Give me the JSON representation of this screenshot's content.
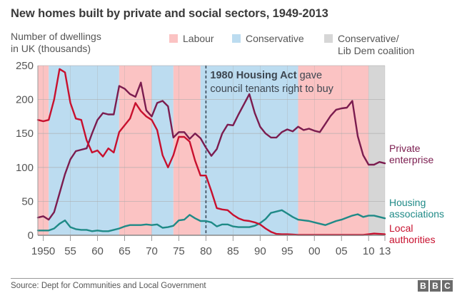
{
  "chart_data": {
    "type": "line",
    "title": "New homes built by private and social sectors, 1949-2013",
    "ylabel": "Number of dwellings in UK (thousands)",
    "ylabel_lines": [
      "Number of dwellings",
      "in UK (thousands)"
    ],
    "xlabel": "",
    "ylim": [
      0,
      250
    ],
    "xlim": [
      1949,
      2013
    ],
    "yticks": [
      0,
      50,
      100,
      150,
      200,
      250
    ],
    "xticks": [
      {
        "year": 1950,
        "label": "1950"
      },
      {
        "year": 1955,
        "label": "55"
      },
      {
        "year": 1960,
        "label": "60"
      },
      {
        "year": 1965,
        "label": "65"
      },
      {
        "year": 1970,
        "label": "70"
      },
      {
        "year": 1975,
        "label": "75"
      },
      {
        "year": 1980,
        "label": "80"
      },
      {
        "year": 1985,
        "label": "85"
      },
      {
        "year": 1990,
        "label": "90"
      },
      {
        "year": 1995,
        "label": "95"
      },
      {
        "year": 2000,
        "label": "00"
      },
      {
        "year": 2005,
        "label": "05"
      },
      {
        "year": 2010,
        "label": "10"
      },
      {
        "year": 2013,
        "label": "13"
      }
    ],
    "grid": true,
    "legend": [
      {
        "label": "Labour",
        "color": "#fbc3c3"
      },
      {
        "label": "Conservative",
        "color": "#bcdcf0"
      },
      {
        "label": "Conservative/ Lib Dem coalition",
        "label_lines": [
          "Conservative/",
          "Lib Dem coalition"
        ],
        "color": "#d6d6d6"
      }
    ],
    "legend_position": "top",
    "government_periods": [
      {
        "party": "Labour",
        "start": 1949,
        "end": 1951
      },
      {
        "party": "Conservative",
        "start": 1951,
        "end": 1964
      },
      {
        "party": "Labour",
        "start": 1964,
        "end": 1970
      },
      {
        "party": "Conservative",
        "start": 1970,
        "end": 1974
      },
      {
        "party": "Labour",
        "start": 1974,
        "end": 1979
      },
      {
        "party": "Conservative",
        "start": 1979,
        "end": 1997
      },
      {
        "party": "Labour",
        "start": 1997,
        "end": 2010
      },
      {
        "party": "Coalition",
        "start": 2010,
        "end": 2013
      }
    ],
    "party_colors": {
      "Labour": "#fbc3c3",
      "Conservative": "#bcdcf0",
      "Coalition": "#d6d6d6"
    },
    "annotation": {
      "year": 1980,
      "bold_text": "1980 Housing Act",
      "text_line1_rest": " gave",
      "text_line2": "council tenants right to buy"
    },
    "x": [
      1949,
      1950,
      1951,
      1952,
      1953,
      1954,
      1955,
      1956,
      1957,
      1958,
      1959,
      1960,
      1961,
      1962,
      1963,
      1964,
      1965,
      1966,
      1967,
      1968,
      1969,
      1970,
      1971,
      1972,
      1973,
      1974,
      1975,
      1976,
      1977,
      1978,
      1979,
      1980,
      1981,
      1982,
      1983,
      1984,
      1985,
      1986,
      1987,
      1988,
      1989,
      1990,
      1991,
      1992,
      1993,
      1994,
      1995,
      1996,
      1997,
      1998,
      1999,
      2000,
      2001,
      2002,
      2003,
      2004,
      2005,
      2006,
      2007,
      2008,
      2009,
      2010,
      2011,
      2012,
      2013
    ],
    "series": [
      {
        "name": "Private enterprise",
        "label_lines": [
          "Private",
          "enterprise"
        ],
        "color": "#7b1c4f",
        "values": [
          26,
          28,
          23,
          34,
          62,
          90,
          112,
          124,
          126,
          128,
          150,
          170,
          180,
          178,
          178,
          220,
          216,
          208,
          204,
          225,
          184,
          175,
          195,
          198,
          190,
          144,
          152,
          152,
          142,
          150,
          143,
          129,
          117,
          127,
          150,
          163,
          162,
          178,
          193,
          208,
          180,
          160,
          150,
          144,
          144,
          152,
          156,
          153,
          160,
          155,
          157,
          154,
          152,
          164,
          176,
          185,
          187,
          188,
          198,
          146,
          118,
          104,
          104,
          108,
          106
        ]
      },
      {
        "name": "Housing associations",
        "label_lines": [
          "Housing",
          "associations"
        ],
        "color": "#1f8a87",
        "values": [
          7,
          7,
          7,
          10,
          17,
          22,
          12,
          9,
          8,
          8,
          6,
          7,
          6,
          6,
          8,
          10,
          13,
          15,
          15,
          15,
          16,
          15,
          16,
          11,
          12,
          14,
          22,
          23,
          30,
          25,
          21,
          21,
          19,
          13,
          16,
          16,
          13,
          12,
          12,
          12,
          14,
          18,
          24,
          33,
          35,
          37,
          32,
          27,
          23,
          22,
          21,
          19,
          17,
          15,
          18,
          21,
          23,
          26,
          29,
          31,
          27,
          29,
          29,
          27,
          25
        ]
      },
      {
        "name": "Local authorities",
        "label_lines": [
          "Local",
          "authorities"
        ],
        "color": "#c8102e",
        "values": [
          170,
          168,
          170,
          200,
          245,
          240,
          195,
          172,
          170,
          140,
          122,
          125,
          116,
          128,
          122,
          152,
          162,
          172,
          195,
          183,
          175,
          170,
          155,
          118,
          100,
          118,
          145,
          145,
          138,
          110,
          88,
          88,
          65,
          40,
          38,
          37,
          30,
          25,
          22,
          21,
          19,
          16,
          10,
          5,
          2,
          1.5,
          1.5,
          1,
          0.5,
          0.5,
          0.5,
          0.5,
          0.5,
          0.5,
          0.5,
          0.5,
          0.5,
          0.5,
          0.5,
          0.5,
          0.5,
          1.5,
          2.5,
          2,
          1.5
        ]
      }
    ]
  },
  "footer": {
    "source": "Source: Dept for Communities and Local Government",
    "logo_letters": [
      "B",
      "B",
      "C"
    ]
  }
}
